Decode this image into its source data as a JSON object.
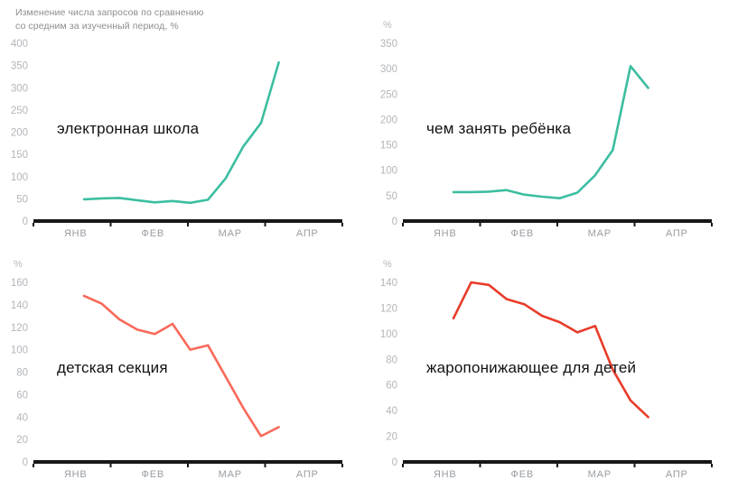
{
  "header": {
    "title_line1": "Изменение числа запросов по сравнению",
    "title_line2": "со средним за изученный период, %"
  },
  "colors": {
    "teal": "#3cbea0",
    "coral": "#fa695a",
    "red": "#e83c2a",
    "axis": "#171717",
    "y_tick_label": "#b3b6ba",
    "month_label": "#989da2",
    "title_text": "#8d8d8d",
    "series_label_text": "#111111"
  },
  "chart_data": [
    {
      "type": "line",
      "title": "электронная школа",
      "color": "#3cbea0",
      "unit": "%",
      "show_unit_label": false,
      "x_tick_labels": [
        "ЯНВ",
        "ФЕВ",
        "МАР",
        "АПР"
      ],
      "ylim": [
        0,
        400
      ],
      "ytick_step": 50,
      "grid": false,
      "legend": "none",
      "x_note": "weekly points, late January to early April",
      "values": [
        49,
        51,
        52,
        47,
        42,
        45,
        41,
        48,
        96,
        168,
        221,
        357
      ]
    },
    {
      "type": "line",
      "title": "чем занять ребёнка",
      "color": "#3cbea0",
      "unit": "%",
      "show_unit_label": true,
      "x_tick_labels": [
        "ЯНВ",
        "ФЕВ",
        "МАР",
        "АПР"
      ],
      "ylim": [
        0,
        350
      ],
      "ytick_step": 50,
      "grid": false,
      "legend": "none",
      "x_note": "weekly points, late January to early April",
      "values": [
        57,
        57,
        58,
        61,
        52,
        48,
        45,
        56,
        90,
        140,
        305,
        262
      ]
    },
    {
      "type": "line",
      "title": "детская секция",
      "color": "#fa695a",
      "unit": "%",
      "show_unit_label": true,
      "x_tick_labels": [
        "ЯНВ",
        "ФЕВ",
        "МАР",
        "АПР"
      ],
      "ylim": [
        0,
        160
      ],
      "ytick_step": 20,
      "grid": false,
      "legend": "none",
      "x_note": "weekly points, late January to early April",
      "values": [
        148,
        141,
        127,
        118,
        114,
        123,
        100,
        104,
        76,
        48,
        23,
        31
      ]
    },
    {
      "type": "line",
      "title": "жаропонижающее для детей",
      "color": "#e83c2a",
      "unit": "%",
      "show_unit_label": true,
      "x_tick_labels": [
        "ЯНВ",
        "ФЕВ",
        "МАР",
        "АПР"
      ],
      "ylim": [
        0,
        140
      ],
      "ytick_step": 20,
      "grid": false,
      "legend": "none",
      "x_note": "weekly points, late January to early April",
      "values": [
        112,
        140,
        138,
        127,
        123,
        114,
        109,
        101,
        106,
        72,
        48,
        35
      ]
    }
  ]
}
